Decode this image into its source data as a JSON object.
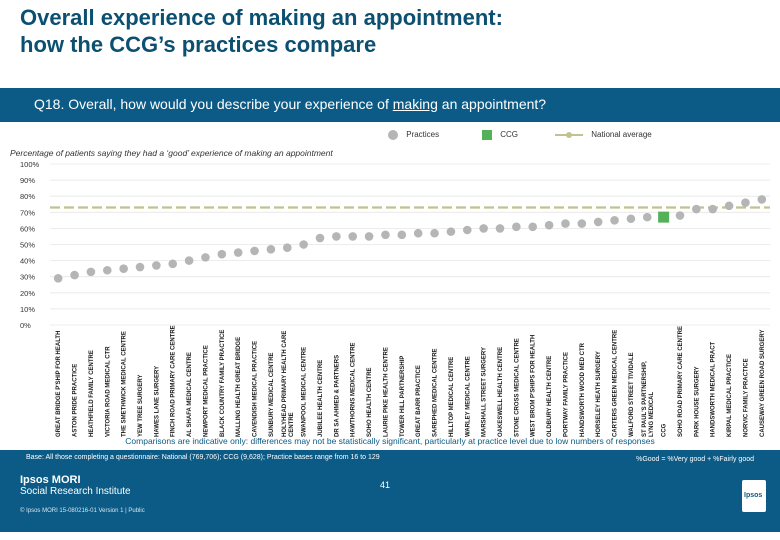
{
  "page": {
    "title_line1": "Overall experience of making an appointment:",
    "title_line2": "how the CCG’s practices compare",
    "question_prefix": "Q18. Overall, how would you describe your experience of ",
    "question_underlined": "making",
    "question_suffix": " an appointment?",
    "legend": {
      "practices": "Practices",
      "ccg": "CCG",
      "national": "National average"
    },
    "colors": {
      "practice": "#b5b5b5",
      "ccg": "#55b05a",
      "national": "#c2c290",
      "band": "#0b5b86",
      "title": "#0b4f71"
    },
    "footnote": "Comparisons are indicative only: differences may not be statistically significant, particularly at practice level due to low numbers of responses",
    "base": "Base: All those completing a questionnaire: National (769,706); CCG (9,628); Practice bases range from 16 to 129",
    "good_def": "%Good = %Very good + %Fairly good",
    "brand_line1": "Ipsos MORI",
    "brand_line2": "Social Research Institute",
    "copyright": "© Ipsos MORI      15-080216-01 Version 1 | Public",
    "page_number": "41",
    "logo_text": "Ipsos"
  },
  "chart_data": {
    "type": "scatter",
    "title": "Percentage of patients saying they had a ‘good’ experience of making an appointment",
    "ylim": [
      0,
      100
    ],
    "yticks": [
      "0%",
      "10%",
      "20%",
      "30%",
      "40%",
      "50%",
      "60%",
      "70%",
      "80%",
      "90%",
      "100%"
    ],
    "national_average": 73,
    "categories": [
      "GREAT BRIDGE P'SHIP FOR HEALTH",
      "ASTON PRIDE PRACTICE",
      "HEATHFIELD FAMILY CENTRE",
      "VICTORIA ROAD MEDICAL CTR",
      "THE SMETHWICK MEDICAL CENTRE",
      "YEW TREE SURGERY",
      "HAWES LANE SURGERY",
      "FINCH ROAD PRIMARY CARE CENTRE",
      "AL SHAFA MEDICAL CENTRE",
      "NEWPORT MEDICAL PRACTICE",
      "BLACK COUNTRY FAMILY PRACTICE",
      "MALLING HEALTH GREAT BRIDGE",
      "CAVENDISH MEDICAL PRACTICE",
      "SUNBURY MEDICAL CENTRE",
      "HOLYHEAD PRIMARY HEALTH CARE CENTRE",
      "SWANPOOL MEDICAL CENTRE",
      "JUBILEE HEALTH CENTRE",
      "DR SA AHMED & PARTNERS",
      "HAWTHORNS MEDICAL CENTRE",
      "SOHO HEALTH CENTRE",
      "LAURIE PIKE HEALTH CENTRE",
      "TOWER HILL PARTNERSHIP",
      "GREAT BARR PRACTICE",
      "SAREPHED MEDICAL CENTRE",
      "HILLTOP MEDICAL CENTRE",
      "WARLEY MEDICAL CENTRE",
      "MARSHALL STREET SURGERY",
      "OAKESWELL HEALTH CENTRE",
      "STONE CROSS MEDICAL CENTRE",
      "WEST BROM P'SHIPS FOR HEALTH",
      "OLDBURY HEALTH CENTRE",
      "PORTWAY FAMILY PRACTICE",
      "HANDSWORTH WOOD MED CTR",
      "HORSELEY HEATH SURGERY",
      "CARTERS GREEN MEDICAL CENTRE",
      "WALFORD STREET TIVIDALE",
      "ST PAUL'S PARTNERSHIP, LYNG MEDICAL",
      "CCG",
      "SOHO ROAD PRIMARY CARE CENTRE",
      "PARK HOUSE SURGERY",
      "HANDSWORTH MEDICAL PRACT",
      "KIRPAL MEDICAL PRACTICE",
      "NORVIC FAMILY PRACTICE",
      "CAUSEWAY GREEN ROAD SURGERY"
    ],
    "values": [
      29,
      31,
      33,
      34,
      35,
      36,
      37,
      38,
      40,
      42,
      44,
      45,
      46,
      47,
      48,
      50,
      54,
      55,
      55,
      55,
      56,
      56,
      57,
      57,
      58,
      59,
      60,
      60,
      61,
      61,
      62,
      63,
      63,
      64,
      65,
      66,
      67,
      67,
      68,
      72,
      72,
      74,
      76,
      78
    ],
    "highlight": "CCG"
  }
}
